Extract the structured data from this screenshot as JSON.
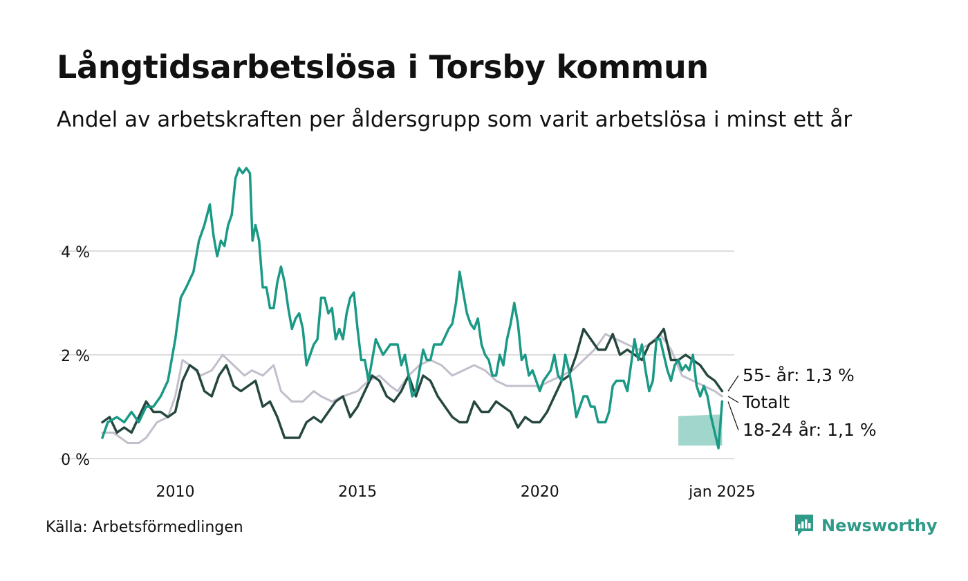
{
  "title": "Långtidsarbetslösa i Torsby kommun",
  "subtitle": "Andel av arbetskraften per åldersgrupp som varit arbetslösa i minst ett år",
  "source": "Källa: Arbetsförmedlingen",
  "brand": "Newsworthy",
  "colors": {
    "young": "#1a9985",
    "old": "#26473f",
    "total": "#c2bfcc",
    "band": "#8fcfc3",
    "grid": "#dddddd",
    "brand": "#2e9a87"
  },
  "chart_data": {
    "type": "line",
    "title": "Långtidsarbetslösa i Torsby kommun",
    "subtitle": "Andel av arbetskraften per åldersgrupp som varit arbetslösa i minst ett år",
    "xlabel": "",
    "ylabel": "",
    "ylim": [
      0,
      5.8
    ],
    "xlim": [
      2008.0,
      2025.05
    ],
    "grid": true,
    "y_ticks": [
      {
        "value": 0,
        "label": "0 %"
      },
      {
        "value": 2,
        "label": "2 %"
      },
      {
        "value": 4,
        "label": "4 %"
      }
    ],
    "x_ticks": [
      {
        "value": 2010,
        "label": "2010"
      },
      {
        "value": 2015,
        "label": "2015"
      },
      {
        "value": 2020,
        "label": "2020"
      },
      {
        "value": 2025,
        "label": "jan 2025"
      }
    ],
    "series": [
      {
        "name": "Totalt",
        "label": "Totalt",
        "color_key": "total",
        "points": [
          [
            2008.0,
            0.5
          ],
          [
            2008.3,
            0.5
          ],
          [
            2008.5,
            0.4
          ],
          [
            2008.7,
            0.3
          ],
          [
            2009.0,
            0.3
          ],
          [
            2009.2,
            0.4
          ],
          [
            2009.5,
            0.7
          ],
          [
            2009.8,
            0.8
          ],
          [
            2010.0,
            1.2
          ],
          [
            2010.2,
            1.9
          ],
          [
            2010.4,
            1.8
          ],
          [
            2010.7,
            1.6
          ],
          [
            2011.0,
            1.7
          ],
          [
            2011.3,
            2.0
          ],
          [
            2011.6,
            1.8
          ],
          [
            2011.9,
            1.6
          ],
          [
            2012.1,
            1.7
          ],
          [
            2012.4,
            1.6
          ],
          [
            2012.7,
            1.8
          ],
          [
            2012.9,
            1.3
          ],
          [
            2013.2,
            1.1
          ],
          [
            2013.5,
            1.1
          ],
          [
            2013.8,
            1.3
          ],
          [
            2014.0,
            1.2
          ],
          [
            2014.3,
            1.1
          ],
          [
            2014.6,
            1.2
          ],
          [
            2015.0,
            1.3
          ],
          [
            2015.3,
            1.5
          ],
          [
            2015.6,
            1.6
          ],
          [
            2015.9,
            1.4
          ],
          [
            2016.1,
            1.3
          ],
          [
            2016.4,
            1.6
          ],
          [
            2016.7,
            1.8
          ],
          [
            2017.0,
            1.9
          ],
          [
            2017.3,
            1.8
          ],
          [
            2017.6,
            1.6
          ],
          [
            2017.9,
            1.7
          ],
          [
            2018.2,
            1.8
          ],
          [
            2018.5,
            1.7
          ],
          [
            2018.8,
            1.5
          ],
          [
            2019.1,
            1.4
          ],
          [
            2019.4,
            1.4
          ],
          [
            2019.7,
            1.4
          ],
          [
            2020.0,
            1.4
          ],
          [
            2020.3,
            1.5
          ],
          [
            2020.6,
            1.6
          ],
          [
            2020.9,
            1.7
          ],
          [
            2021.2,
            1.9
          ],
          [
            2021.5,
            2.1
          ],
          [
            2021.8,
            2.4
          ],
          [
            2022.1,
            2.3
          ],
          [
            2022.4,
            2.2
          ],
          [
            2022.7,
            2.1
          ],
          [
            2023.0,
            2.2
          ],
          [
            2023.3,
            2.4
          ],
          [
            2023.6,
            2.1
          ],
          [
            2023.9,
            1.6
          ],
          [
            2024.2,
            1.5
          ],
          [
            2024.5,
            1.4
          ],
          [
            2024.8,
            1.3
          ],
          [
            2025.0,
            1.2
          ]
        ]
      },
      {
        "name": "55- år",
        "label": "55- år: 1,3 %",
        "color_key": "old",
        "points": [
          [
            2008.0,
            0.7
          ],
          [
            2008.2,
            0.8
          ],
          [
            2008.4,
            0.5
          ],
          [
            2008.6,
            0.6
          ],
          [
            2008.8,
            0.5
          ],
          [
            2009.0,
            0.8
          ],
          [
            2009.2,
            1.1
          ],
          [
            2009.4,
            0.9
          ],
          [
            2009.6,
            0.9
          ],
          [
            2009.8,
            0.8
          ],
          [
            2010.0,
            0.9
          ],
          [
            2010.2,
            1.5
          ],
          [
            2010.4,
            1.8
          ],
          [
            2010.6,
            1.7
          ],
          [
            2010.8,
            1.3
          ],
          [
            2011.0,
            1.2
          ],
          [
            2011.2,
            1.6
          ],
          [
            2011.4,
            1.8
          ],
          [
            2011.6,
            1.4
          ],
          [
            2011.8,
            1.3
          ],
          [
            2012.0,
            1.4
          ],
          [
            2012.2,
            1.5
          ],
          [
            2012.4,
            1.0
          ],
          [
            2012.6,
            1.1
          ],
          [
            2012.8,
            0.8
          ],
          [
            2013.0,
            0.4
          ],
          [
            2013.2,
            0.4
          ],
          [
            2013.4,
            0.4
          ],
          [
            2013.6,
            0.7
          ],
          [
            2013.8,
            0.8
          ],
          [
            2014.0,
            0.7
          ],
          [
            2014.2,
            0.9
          ],
          [
            2014.4,
            1.1
          ],
          [
            2014.6,
            1.2
          ],
          [
            2014.8,
            0.8
          ],
          [
            2015.0,
            1.0
          ],
          [
            2015.2,
            1.3
          ],
          [
            2015.4,
            1.6
          ],
          [
            2015.6,
            1.5
          ],
          [
            2015.8,
            1.2
          ],
          [
            2016.0,
            1.1
          ],
          [
            2016.2,
            1.3
          ],
          [
            2016.4,
            1.6
          ],
          [
            2016.6,
            1.2
          ],
          [
            2016.8,
            1.6
          ],
          [
            2017.0,
            1.5
          ],
          [
            2017.2,
            1.2
          ],
          [
            2017.4,
            1.0
          ],
          [
            2017.6,
            0.8
          ],
          [
            2017.8,
            0.7
          ],
          [
            2018.0,
            0.7
          ],
          [
            2018.2,
            1.1
          ],
          [
            2018.4,
            0.9
          ],
          [
            2018.6,
            0.9
          ],
          [
            2018.8,
            1.1
          ],
          [
            2019.0,
            1.0
          ],
          [
            2019.2,
            0.9
          ],
          [
            2019.4,
            0.6
          ],
          [
            2019.6,
            0.8
          ],
          [
            2019.8,
            0.7
          ],
          [
            2020.0,
            0.7
          ],
          [
            2020.2,
            0.9
          ],
          [
            2020.4,
            1.2
          ],
          [
            2020.6,
            1.5
          ],
          [
            2020.8,
            1.6
          ],
          [
            2021.0,
            2.0
          ],
          [
            2021.2,
            2.5
          ],
          [
            2021.4,
            2.3
          ],
          [
            2021.6,
            2.1
          ],
          [
            2021.8,
            2.1
          ],
          [
            2022.0,
            2.4
          ],
          [
            2022.2,
            2.0
          ],
          [
            2022.4,
            2.1
          ],
          [
            2022.6,
            2.0
          ],
          [
            2022.8,
            1.9
          ],
          [
            2023.0,
            2.2
          ],
          [
            2023.2,
            2.3
          ],
          [
            2023.4,
            2.5
          ],
          [
            2023.6,
            1.9
          ],
          [
            2023.8,
            1.9
          ],
          [
            2024.0,
            2.0
          ],
          [
            2024.2,
            1.9
          ],
          [
            2024.4,
            1.8
          ],
          [
            2024.6,
            1.6
          ],
          [
            2024.8,
            1.5
          ],
          [
            2025.0,
            1.3
          ]
        ]
      },
      {
        "name": "18-24 år",
        "label": "18-24 år: 1,1 %",
        "color_key": "young",
        "points": [
          [
            2008.0,
            0.4
          ],
          [
            2008.15,
            0.7
          ],
          [
            2008.4,
            0.8
          ],
          [
            2008.6,
            0.7
          ],
          [
            2008.8,
            0.9
          ],
          [
            2009.0,
            0.7
          ],
          [
            2009.2,
            1.0
          ],
          [
            2009.4,
            1.0
          ],
          [
            2009.6,
            1.2
          ],
          [
            2009.8,
            1.5
          ],
          [
            2010.0,
            2.3
          ],
          [
            2010.15,
            3.1
          ],
          [
            2010.3,
            3.3
          ],
          [
            2010.5,
            3.6
          ],
          [
            2010.65,
            4.2
          ],
          [
            2010.8,
            4.5
          ],
          [
            2010.95,
            4.9
          ],
          [
            2011.05,
            4.3
          ],
          [
            2011.15,
            3.9
          ],
          [
            2011.25,
            4.2
          ],
          [
            2011.35,
            4.1
          ],
          [
            2011.45,
            4.5
          ],
          [
            2011.55,
            4.7
          ],
          [
            2011.65,
            5.4
          ],
          [
            2011.75,
            5.6
          ],
          [
            2011.85,
            5.5
          ],
          [
            2011.95,
            5.6
          ],
          [
            2012.05,
            5.5
          ],
          [
            2012.12,
            4.2
          ],
          [
            2012.2,
            4.5
          ],
          [
            2012.3,
            4.2
          ],
          [
            2012.4,
            3.3
          ],
          [
            2012.5,
            3.3
          ],
          [
            2012.6,
            2.9
          ],
          [
            2012.7,
            2.9
          ],
          [
            2012.8,
            3.4
          ],
          [
            2012.9,
            3.7
          ],
          [
            2013.0,
            3.4
          ],
          [
            2013.1,
            2.9
          ],
          [
            2013.2,
            2.5
          ],
          [
            2013.3,
            2.7
          ],
          [
            2013.4,
            2.8
          ],
          [
            2013.5,
            2.5
          ],
          [
            2013.6,
            1.8
          ],
          [
            2013.8,
            2.2
          ],
          [
            2013.9,
            2.3
          ],
          [
            2014.0,
            3.1
          ],
          [
            2014.1,
            3.1
          ],
          [
            2014.2,
            2.8
          ],
          [
            2014.3,
            2.9
          ],
          [
            2014.4,
            2.3
          ],
          [
            2014.5,
            2.5
          ],
          [
            2014.6,
            2.3
          ],
          [
            2014.7,
            2.8
          ],
          [
            2014.8,
            3.1
          ],
          [
            2014.9,
            3.2
          ],
          [
            2015.0,
            2.5
          ],
          [
            2015.1,
            1.9
          ],
          [
            2015.2,
            1.9
          ],
          [
            2015.3,
            1.5
          ],
          [
            2015.5,
            2.3
          ],
          [
            2015.7,
            2.0
          ],
          [
            2015.9,
            2.2
          ],
          [
            2016.1,
            2.2
          ],
          [
            2016.2,
            1.8
          ],
          [
            2016.3,
            2.0
          ],
          [
            2016.5,
            1.2
          ],
          [
            2016.6,
            1.3
          ],
          [
            2016.8,
            2.1
          ],
          [
            2016.9,
            1.9
          ],
          [
            2017.0,
            1.9
          ],
          [
            2017.1,
            2.2
          ],
          [
            2017.3,
            2.2
          ],
          [
            2017.5,
            2.5
          ],
          [
            2017.6,
            2.6
          ],
          [
            2017.7,
            3.0
          ],
          [
            2017.8,
            3.6
          ],
          [
            2017.9,
            3.2
          ],
          [
            2018.0,
            2.8
          ],
          [
            2018.1,
            2.6
          ],
          [
            2018.2,
            2.5
          ],
          [
            2018.3,
            2.7
          ],
          [
            2018.4,
            2.2
          ],
          [
            2018.5,
            2.0
          ],
          [
            2018.6,
            1.9
          ],
          [
            2018.7,
            1.6
          ],
          [
            2018.8,
            1.6
          ],
          [
            2018.9,
            2.0
          ],
          [
            2019.0,
            1.8
          ],
          [
            2019.1,
            2.3
          ],
          [
            2019.2,
            2.6
          ],
          [
            2019.3,
            3.0
          ],
          [
            2019.4,
            2.6
          ],
          [
            2019.5,
            1.9
          ],
          [
            2019.6,
            2.0
          ],
          [
            2019.7,
            1.6
          ],
          [
            2019.8,
            1.7
          ],
          [
            2019.9,
            1.5
          ],
          [
            2020.0,
            1.3
          ],
          [
            2020.1,
            1.5
          ],
          [
            2020.2,
            1.6
          ],
          [
            2020.3,
            1.7
          ],
          [
            2020.4,
            2.0
          ],
          [
            2020.5,
            1.6
          ],
          [
            2020.6,
            1.5
          ],
          [
            2020.7,
            2.0
          ],
          [
            2020.8,
            1.7
          ],
          [
            2020.9,
            1.3
          ],
          [
            2021.0,
            0.8
          ],
          [
            2021.1,
            1.0
          ],
          [
            2021.2,
            1.2
          ],
          [
            2021.3,
            1.2
          ],
          [
            2021.4,
            1.0
          ],
          [
            2021.5,
            1.0
          ],
          [
            2021.6,
            0.7
          ],
          [
            2021.8,
            0.7
          ],
          [
            2021.9,
            0.9
          ],
          [
            2022.0,
            1.4
          ],
          [
            2022.1,
            1.5
          ],
          [
            2022.3,
            1.5
          ],
          [
            2022.4,
            1.3
          ],
          [
            2022.6,
            2.3
          ],
          [
            2022.7,
            1.9
          ],
          [
            2022.8,
            2.2
          ],
          [
            2022.9,
            1.7
          ],
          [
            2023.0,
            1.3
          ],
          [
            2023.1,
            1.5
          ],
          [
            2023.2,
            2.3
          ],
          [
            2023.3,
            2.3
          ],
          [
            2023.4,
            2.0
          ],
          [
            2023.5,
            1.7
          ],
          [
            2023.6,
            1.5
          ],
          [
            2023.7,
            1.8
          ],
          [
            2023.8,
            1.9
          ],
          [
            2023.9,
            1.7
          ],
          [
            2024.0,
            1.8
          ],
          [
            2024.1,
            1.7
          ],
          [
            2024.2,
            2.0
          ],
          [
            2024.3,
            1.4
          ],
          [
            2024.4,
            1.2
          ],
          [
            2024.5,
            1.4
          ],
          [
            2024.6,
            1.2
          ],
          [
            2024.7,
            0.8
          ],
          [
            2024.8,
            0.5
          ],
          [
            2024.9,
            0.2
          ],
          [
            2025.0,
            1.1
          ]
        ]
      }
    ],
    "uncertainty_band": {
      "series": "18-24 år",
      "points": [
        [
          2023.8,
          0.25,
          0.82
        ],
        [
          2025.0,
          0.25,
          0.85
        ]
      ]
    }
  }
}
